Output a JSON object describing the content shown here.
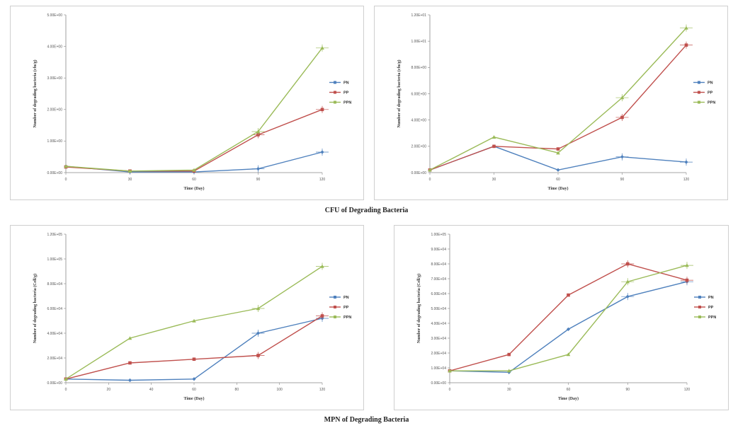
{
  "colors": {
    "PN": "#4f81bd",
    "PP": "#c0504d",
    "PPN": "#9bbb59"
  },
  "captions": {
    "top": "CFU of Degrading Bacteria",
    "bottom": "MPN of Degrading Bacteria"
  },
  "chart_data": [
    {
      "type": "line",
      "xlabel": "Time (Day)",
      "ylabel": "Number of degrading bacteria (cfu/g)",
      "xlim": [
        0,
        120
      ],
      "ylim": [
        0,
        5
      ],
      "x_ticks": [
        "0",
        "30",
        "60",
        "90",
        "120"
      ],
      "y_ticks": [
        "0.00E+00",
        "1.00E+00",
        "2.00E+00",
        "3.00E+00",
        "4.00E+00",
        "5.00E+00"
      ],
      "series": [
        {
          "name": "PN",
          "x": [
            0,
            30,
            60,
            90,
            120
          ],
          "y": [
            0.2,
            0.02,
            0.02,
            0.12,
            0.65
          ]
        },
        {
          "name": "PP",
          "x": [
            0,
            30,
            60,
            90,
            120
          ],
          "y": [
            0.18,
            0.05,
            0.05,
            1.2,
            2.0
          ]
        },
        {
          "name": "PPN",
          "x": [
            0,
            30,
            60,
            90,
            120
          ],
          "y": [
            0.2,
            0.05,
            0.08,
            1.3,
            3.95
          ]
        }
      ]
    },
    {
      "type": "line",
      "xlabel": "Time (Day)",
      "ylabel": "Number of degrading bacteria (cfu/g)",
      "xlim": [
        0,
        120
      ],
      "ylim": [
        0,
        1.2
      ],
      "x_ticks": [
        "0",
        "30",
        "60",
        "90",
        "120"
      ],
      "y_ticks": [
        "0.00E+00",
        "2.00E+00",
        "4.00E+00",
        "6.00E+00",
        "8.00E+00",
        "1.00E+01",
        "1.20E+01"
      ],
      "series": [
        {
          "name": "PN",
          "x": [
            0,
            30,
            60,
            90,
            120
          ],
          "y": [
            0.02,
            0.2,
            0.02,
            0.12,
            0.08
          ]
        },
        {
          "name": "PP",
          "x": [
            0,
            30,
            60,
            90,
            120
          ],
          "y": [
            0.02,
            0.2,
            0.18,
            0.42,
            0.97
          ]
        },
        {
          "name": "PPN",
          "x": [
            0,
            30,
            60,
            90,
            120
          ],
          "y": [
            0.02,
            0.27,
            0.15,
            0.57,
            1.1
          ]
        }
      ]
    },
    {
      "type": "line",
      "xlabel": "Time (Day)",
      "ylabel": "Number of degrading bacteria (Cell/g)",
      "xlim": [
        0,
        120
      ],
      "ylim": [
        0,
        12
      ],
      "x_ticks": [
        "0",
        "20",
        "40",
        "60",
        "80",
        "100",
        "120"
      ],
      "y_ticks": [
        "0.00E+00",
        "2.00E+04",
        "4.00E+04",
        "6.00E+04",
        "8.00E+04",
        "1.00E+05",
        "1.20E+05"
      ],
      "series": [
        {
          "name": "PN",
          "x": [
            0,
            30,
            60,
            90,
            120
          ],
          "y": [
            0.3,
            0.2,
            0.3,
            4.0,
            5.2
          ]
        },
        {
          "name": "PP",
          "x": [
            0,
            30,
            60,
            90,
            120
          ],
          "y": [
            0.3,
            1.6,
            1.9,
            2.2,
            5.4
          ]
        },
        {
          "name": "PPN",
          "x": [
            0,
            30,
            60,
            90,
            120
          ],
          "y": [
            0.3,
            3.6,
            5.0,
            6.0,
            9.4
          ]
        }
      ]
    },
    {
      "type": "line",
      "xlabel": "Time (Day)",
      "ylabel": "Number of degrading bacteria (Cell/g)",
      "xlim": [
        0,
        120
      ],
      "ylim": [
        0,
        10
      ],
      "x_ticks": [
        "0",
        "30",
        "60",
        "90",
        "120"
      ],
      "y_ticks": [
        "0.00E+00",
        "1.00E+04",
        "2.00E+04",
        "3.00E+04",
        "4.00E+04",
        "5.00E+04",
        "6.00E+04",
        "7.00E+04",
        "8.00E+04",
        "9.00E+04",
        "1.00E+05"
      ],
      "series": [
        {
          "name": "PN",
          "x": [
            0,
            30,
            60,
            90,
            120
          ],
          "y": [
            0.8,
            0.7,
            3.6,
            5.8,
            6.8
          ]
        },
        {
          "name": "PP",
          "x": [
            0,
            30,
            60,
            90,
            120
          ],
          "y": [
            0.8,
            1.9,
            5.9,
            8.0,
            6.9
          ]
        },
        {
          "name": "PPN",
          "x": [
            0,
            30,
            60,
            90,
            120
          ],
          "y": [
            0.8,
            0.8,
            1.9,
            6.8,
            7.9
          ]
        }
      ]
    }
  ]
}
